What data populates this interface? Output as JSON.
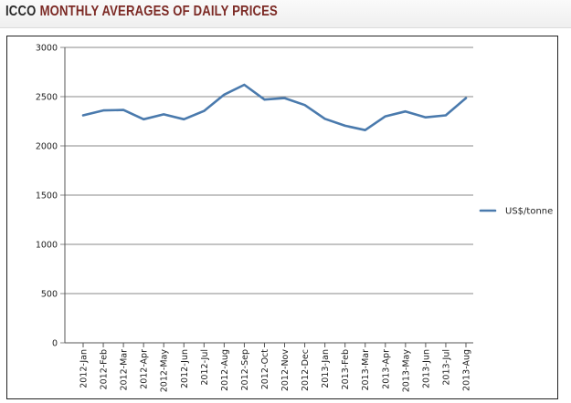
{
  "header": {
    "org": "ICCO",
    "title": "MONTHLY AVERAGES OF DAILY PRICES"
  },
  "colors": {
    "series": "#4a7aad",
    "grid": "#888888",
    "title_accent": "#7c2a25"
  },
  "chart_data": {
    "type": "line",
    "title": "ICCO Monthly Averages of Daily Prices",
    "xlabel": "",
    "ylabel": "",
    "ylim": [
      0,
      3000
    ],
    "yticks": [
      0,
      500,
      1000,
      1500,
      2000,
      2500,
      3000
    ],
    "ytick_labels": [
      "0",
      "500",
      "1000",
      "1500",
      "2000",
      "2500",
      "3000"
    ],
    "categories": [
      "2012-Jan",
      "2012-Feb",
      "2012-Mar",
      "2012-Apr",
      "2012-May",
      "2012-Jun",
      "2012-Jul",
      "2012-Aug",
      "2012-Sep",
      "2012-Oct",
      "2012-Nov",
      "2012-Dec",
      "2013-Jan",
      "2013-Feb",
      "2013-Mar",
      "2013-Apr",
      "2013-May",
      "2013-Jun",
      "2013-Jul",
      "2013-Aug"
    ],
    "series": [
      {
        "name": "US$/tonne",
        "values": [
          2310,
          2360,
          2365,
          2270,
          2320,
          2270,
          2355,
          2520,
          2620,
          2470,
          2485,
          2415,
          2275,
          2205,
          2160,
          2300,
          2350,
          2290,
          2310,
          2485
        ]
      }
    ],
    "legend_position": "right",
    "grid": true
  }
}
